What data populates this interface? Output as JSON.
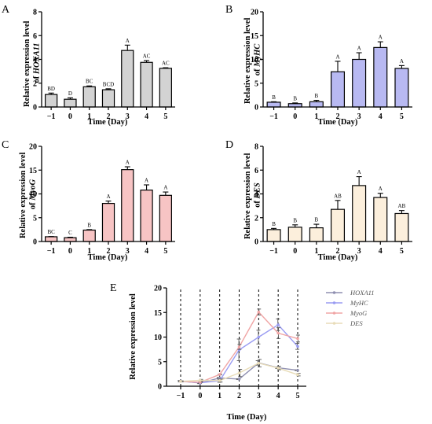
{
  "chart_data": [
    {
      "panel": "A",
      "type": "bar",
      "xlabel": "Time (Day)",
      "ylabel_prefix": "Relative expression level",
      "ylabel_of": "of",
      "ylabel_gene": "HOXA11",
      "categories": [
        "−1",
        "0",
        "1",
        "2",
        "3",
        "4",
        "5"
      ],
      "values": [
        1.05,
        0.65,
        1.7,
        1.45,
        4.75,
        3.75,
        3.25
      ],
      "errors": [
        0.12,
        0.12,
        0.07,
        0.08,
        0.45,
        0.15,
        0.05
      ],
      "significance": [
        "BD",
        "D",
        "BC",
        "BCD",
        "A",
        "AC",
        "AC"
      ],
      "ylim": [
        0,
        8
      ],
      "yticks": [
        "0",
        "2",
        "4",
        "6",
        "8"
      ],
      "bar_color": "#d3d3d3"
    },
    {
      "panel": "B",
      "type": "bar",
      "xlabel": "Time (Day)",
      "ylabel_prefix": "Relative expression level",
      "ylabel_of": "of",
      "ylabel_gene": "MyHC",
      "categories": [
        "−1",
        "0",
        "1",
        "2",
        "3",
        "4",
        "5"
      ],
      "values": [
        1.0,
        0.7,
        1.1,
        7.4,
        10.0,
        12.5,
        8.1
      ],
      "errors": [
        0.1,
        0.15,
        0.3,
        2.2,
        1.4,
        1.2,
        0.6
      ],
      "significance": [
        "B",
        "B",
        "B",
        "A",
        "A",
        "A",
        "A"
      ],
      "ylim": [
        0,
        20
      ],
      "yticks": [
        "0",
        "5",
        "10",
        "15",
        "20"
      ],
      "bar_color": "#b8b9f2"
    },
    {
      "panel": "C",
      "type": "bar",
      "xlabel": "Time (Day)",
      "ylabel_prefix": "Relative expression level",
      "ylabel_of": "of",
      "ylabel_gene": "MyoG",
      "categories": [
        "−1",
        "0",
        "1",
        "2",
        "3",
        "4",
        "5"
      ],
      "values": [
        1.0,
        0.8,
        2.4,
        8.0,
        15.1,
        10.8,
        9.7
      ],
      "errors": [
        0.05,
        0.1,
        0.1,
        0.5,
        0.6,
        1.1,
        0.7
      ],
      "significance": [
        "BC",
        "C",
        "B",
        "A",
        "A",
        "A",
        "A"
      ],
      "ylim": [
        0,
        20
      ],
      "yticks": [
        "0",
        "5",
        "10",
        "15",
        "20"
      ],
      "bar_color": "#f7c4c4"
    },
    {
      "panel": "D",
      "type": "bar",
      "xlabel": "Time (Day)",
      "ylabel_prefix": "Relative expression level",
      "ylabel_of": "of",
      "ylabel_gene": "DES",
      "categories": [
        "−1",
        "0",
        "1",
        "2",
        "3",
        "4",
        "5"
      ],
      "values": [
        1.0,
        1.2,
        1.15,
        2.7,
        4.7,
        3.7,
        2.35
      ],
      "errors": [
        0.1,
        0.2,
        0.3,
        0.75,
        0.75,
        0.35,
        0.25
      ],
      "significance": [
        "B",
        "B",
        "B",
        "AB",
        "A",
        "A",
        "AB"
      ],
      "ylim": [
        0,
        8
      ],
      "yticks": [
        "0",
        "2",
        "4",
        "6",
        "8"
      ],
      "bar_color": "#fcefdc"
    },
    {
      "panel": "E",
      "type": "line",
      "xlabel": "Time (Day)",
      "ylabel": "Relative expression level",
      "x": [
        "−1",
        "0",
        "1",
        "2",
        "3",
        "4",
        "5"
      ],
      "ylim": [
        0,
        20
      ],
      "yticks": [
        "0",
        "5",
        "10",
        "15",
        "20"
      ],
      "vertical_dashed_lines": true,
      "legend_position": "right",
      "series": [
        {
          "name": "HOXA11",
          "color": "#8f8fb0",
          "values": [
            1.05,
            0.65,
            1.7,
            1.45,
            4.75,
            3.75,
            3.25
          ],
          "errors": [
            0.12,
            0.12,
            0.07,
            0.08,
            0.45,
            0.15,
            0.05
          ]
        },
        {
          "name": "MyHC",
          "color": "#9a9cf2",
          "values": [
            1.0,
            0.7,
            1.1,
            7.4,
            10.0,
            12.5,
            8.1
          ],
          "errors": [
            0.1,
            0.15,
            0.3,
            2.2,
            1.4,
            1.2,
            0.6
          ]
        },
        {
          "name": "MyoG",
          "color": "#f0a5a5",
          "values": [
            1.0,
            0.8,
            2.4,
            8.0,
            15.1,
            10.8,
            9.7
          ],
          "errors": [
            0.05,
            0.1,
            0.1,
            0.5,
            0.6,
            1.1,
            0.7
          ]
        },
        {
          "name": "DES",
          "color": "#e8dcb8",
          "values": [
            1.0,
            1.2,
            1.15,
            2.7,
            4.7,
            3.7,
            2.35
          ],
          "errors": [
            0.1,
            0.2,
            0.3,
            0.75,
            0.75,
            0.35,
            0.25
          ]
        }
      ]
    }
  ]
}
